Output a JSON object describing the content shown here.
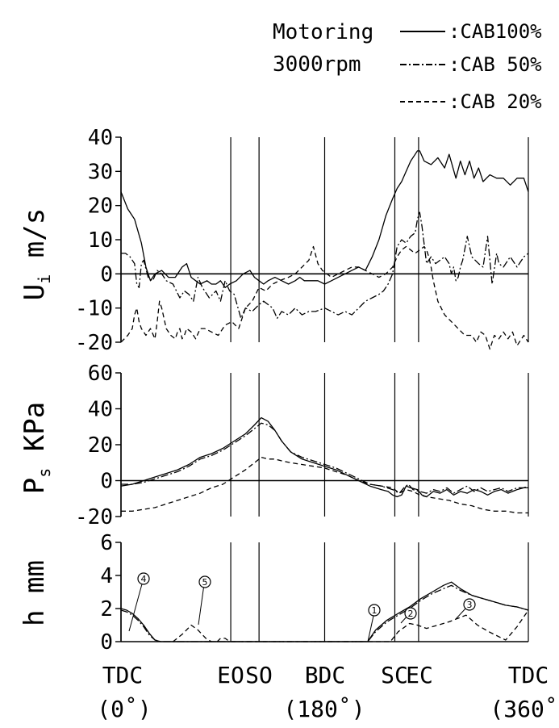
{
  "header": {
    "line1": "Motoring",
    "line2": "3000rpm"
  },
  "legend": [
    {
      "label": ":CAB100%",
      "style": "solid"
    },
    {
      "label": ":CAB 50%",
      "style": "dashdot"
    },
    {
      "label": ":CAB 20%",
      "style": "dashed"
    }
  ],
  "x_ticks": {
    "TDC0": "TDC",
    "TDC0_sub": "(0˚)",
    "EO": "EO",
    "SO": "SO",
    "BDC": "BDC",
    "BDC_sub": "(180˚)",
    "SC": "SC",
    "EC": "EC",
    "TDC360": "TDC",
    "TDC360_sub": "(360˚)"
  },
  "panels": [
    {
      "id": "U",
      "ylabel": "U",
      "ylabel_sub": "i",
      "ylabel_rest": " m/s",
      "ylim": [
        -20,
        40
      ],
      "yticks": [
        "40",
        "30",
        "20",
        "10",
        "0",
        "-10",
        "-20"
      ]
    },
    {
      "id": "P",
      "ylabel": "P",
      "ylabel_sub": "s",
      "ylabel_rest": " KPa",
      "ylim": [
        -20,
        60
      ],
      "yticks": [
        "60",
        "40",
        "20",
        "0",
        "-20"
      ]
    },
    {
      "id": "h",
      "ylabel": "h mm",
      "ylim": [
        0,
        6
      ],
      "yticks": [
        "6",
        "4",
        "2",
        "0"
      ]
    }
  ],
  "markers": [
    "1",
    "2",
    "3",
    "4",
    "5"
  ],
  "chart_data": [
    {
      "type": "line",
      "title": "",
      "ylabel": "U i m/s",
      "xlim": [
        0,
        360
      ],
      "ylim": [
        -20,
        40
      ],
      "vlines": [
        0,
        97,
        122,
        180,
        242,
        263,
        360
      ],
      "series": [
        {
          "name": "CAB100%",
          "style": "solid",
          "x": [
            0,
            6,
            12,
            18,
            22,
            26,
            30,
            36,
            42,
            48,
            54,
            58,
            62,
            66,
            70,
            76,
            80,
            84,
            88,
            92,
            96,
            102,
            108,
            114,
            118,
            122,
            126,
            130,
            136,
            142,
            148,
            154,
            158,
            162,
            168,
            174,
            180,
            186,
            192,
            198,
            204,
            210,
            216,
            222,
            228,
            234,
            240,
            244,
            248,
            252,
            256,
            260,
            262,
            264,
            268,
            274,
            280,
            286,
            290,
            296,
            300,
            304,
            308,
            312,
            316,
            320,
            326,
            332,
            338,
            344,
            350,
            356,
            360
          ],
          "y": [
            24,
            19,
            16,
            9,
            2,
            -2,
            0,
            1,
            -1,
            -1,
            2,
            3,
            -1,
            -2,
            -3,
            -2,
            -3,
            -3,
            -2,
            -4,
            -3,
            -2,
            0,
            1,
            -1,
            -2,
            -3,
            -2,
            -1,
            -2,
            -3,
            -2,
            -1,
            -2,
            -2,
            -2,
            -3,
            -2,
            -1,
            0,
            1,
            2,
            1,
            5,
            10,
            17,
            22,
            25,
            27,
            30,
            33,
            35,
            36,
            36,
            33,
            32,
            34,
            31,
            35,
            28,
            33,
            29,
            33,
            28,
            31,
            27,
            29,
            28,
            28,
            26,
            28,
            28,
            24
          ]
        },
        {
          "name": "CAB 50%",
          "style": "dashdot",
          "x": [
            0,
            4,
            8,
            12,
            14,
            16,
            18,
            20,
            24,
            28,
            32,
            36,
            40,
            46,
            52,
            56,
            60,
            64,
            68,
            72,
            78,
            84,
            88,
            92,
            96,
            100,
            106,
            110,
            116,
            122,
            126,
            130,
            134,
            138,
            142,
            148,
            154,
            160,
            166,
            172,
            180,
            186,
            192,
            198,
            204,
            210,
            216,
            222,
            228,
            232,
            236,
            240,
            244,
            248,
            252,
            256,
            260,
            262,
            264,
            266,
            270,
            274,
            278,
            282,
            286,
            290,
            292,
            294,
            296,
            298,
            300,
            302,
            306,
            310,
            316,
            320,
            324,
            328,
            332,
            334,
            338,
            344,
            350,
            356,
            360
          ],
          "y": [
            6,
            6,
            5,
            3,
            -3,
            -4,
            3,
            4,
            -1,
            -2,
            1,
            0,
            -2,
            -3,
            -7,
            -5,
            -6,
            -8,
            -1,
            -4,
            -7,
            -5,
            -8,
            -2,
            -5,
            -6,
            -13,
            -10,
            -11,
            -9,
            -8,
            -9,
            -10,
            -13,
            -11,
            -12,
            -10,
            -12,
            -11,
            -11,
            -10,
            -11,
            -12,
            -11,
            -12,
            -10,
            -8,
            -7,
            -6,
            -5,
            -3,
            0,
            8,
            10,
            9,
            11,
            12,
            16,
            18,
            14,
            3,
            5,
            3,
            4,
            5,
            3,
            0,
            2,
            -2,
            -1,
            2,
            4,
            11,
            5,
            3,
            2,
            11,
            -3,
            6,
            3,
            2,
            5,
            2,
            5,
            6
          ]
        },
        {
          "name": "CAB 20%",
          "style": "dashed",
          "x": [
            0,
            6,
            10,
            12,
            14,
            16,
            18,
            22,
            26,
            30,
            32,
            34,
            36,
            40,
            44,
            48,
            50,
            52,
            54,
            56,
            58,
            62,
            66,
            70,
            74,
            80,
            86,
            92,
            98,
            104,
            110,
            116,
            122,
            128,
            134,
            140,
            148,
            154,
            160,
            166,
            170,
            174,
            178,
            182,
            186,
            192,
            198,
            204,
            210,
            216,
            222,
            228,
            234,
            240,
            244,
            248,
            252,
            256,
            260,
            264,
            268,
            270,
            272,
            274,
            276,
            280,
            286,
            292,
            298,
            304,
            310,
            314,
            318,
            322,
            326,
            330,
            334,
            338,
            342,
            346,
            350,
            356,
            360
          ],
          "y": [
            -20,
            -18,
            -16,
            -12,
            -10,
            -14,
            -16,
            -18,
            -16,
            -19,
            -14,
            -8,
            -10,
            -16,
            -18,
            -19,
            -17,
            -16,
            -19,
            -18,
            -16,
            -17,
            -19,
            -16,
            -16,
            -17,
            -18,
            -15,
            -14,
            -16,
            -10,
            -8,
            -4,
            -5,
            -3,
            -2,
            -1,
            0,
            2,
            4,
            8,
            3,
            1,
            0,
            -1,
            0,
            1,
            2,
            2,
            1,
            0,
            -1,
            0,
            2,
            5,
            7,
            8,
            7,
            6,
            7,
            8,
            7,
            5,
            2,
            -2,
            -8,
            -12,
            -14,
            -16,
            -18,
            -18,
            -20,
            -17,
            -18,
            -22,
            -18,
            -19,
            -17,
            -19,
            -17,
            -21,
            -18,
            -20
          ]
        }
      ]
    },
    {
      "type": "line",
      "title": "",
      "ylabel": "P s KPa",
      "xlim": [
        0,
        360
      ],
      "ylim": [
        -20,
        60
      ],
      "vlines": [
        0,
        97,
        122,
        180,
        242,
        263,
        360
      ],
      "series": [
        {
          "name": "CAB100%",
          "style": "solid",
          "x": [
            0,
            10,
            20,
            30,
            40,
            50,
            60,
            70,
            80,
            90,
            100,
            110,
            118,
            124,
            130,
            136,
            142,
            150,
            160,
            170,
            180,
            190,
            200,
            210,
            220,
            230,
            236,
            240,
            244,
            248,
            252,
            256,
            262,
            266,
            270,
            276,
            282,
            288,
            294,
            300,
            306,
            312,
            318,
            324,
            330,
            336,
            342,
            350,
            356,
            360
          ],
          "y": [
            -3,
            -2,
            0,
            2,
            4,
            6,
            9,
            13,
            15,
            18,
            22,
            26,
            31,
            35,
            33,
            28,
            22,
            16,
            12,
            10,
            8,
            6,
            3,
            0,
            -3,
            -5,
            -6,
            -8,
            -9,
            -8,
            -3,
            -4,
            -5,
            -8,
            -9,
            -6,
            -7,
            -5,
            -8,
            -6,
            -7,
            -5,
            -6,
            -8,
            -6,
            -5,
            -7,
            -5,
            -4,
            -4
          ]
        },
        {
          "name": "CAB 50%",
          "style": "dashdot",
          "x": [
            0,
            10,
            20,
            30,
            40,
            50,
            60,
            70,
            80,
            90,
            100,
            110,
            118,
            124,
            130,
            136,
            142,
            150,
            160,
            170,
            180,
            190,
            200,
            210,
            220,
            230,
            240,
            246,
            250,
            254,
            258,
            264,
            270,
            276,
            282,
            288,
            294,
            300,
            306,
            312,
            318,
            324,
            330,
            336,
            342,
            350,
            356,
            360
          ],
          "y": [
            -2,
            -2,
            -1,
            1,
            3,
            5,
            8,
            12,
            14,
            17,
            21,
            25,
            29,
            32,
            31,
            28,
            22,
            16,
            13,
            11,
            9,
            7,
            4,
            1,
            -2,
            -3,
            -5,
            -7,
            -4,
            -2,
            -5,
            -6,
            -7,
            -5,
            -6,
            -4,
            -7,
            -5,
            -3,
            -6,
            -4,
            -6,
            -5,
            -4,
            -6,
            -4,
            -4,
            -3
          ]
        },
        {
          "name": "CAB 20%",
          "style": "dashed",
          "x": [
            0,
            10,
            20,
            30,
            40,
            50,
            60,
            70,
            80,
            90,
            100,
            110,
            118,
            124,
            130,
            136,
            142,
            150,
            160,
            170,
            180,
            190,
            200,
            210,
            220,
            230,
            240,
            246,
            252,
            258,
            264,
            270,
            280,
            290,
            300,
            310,
            320,
            330,
            340,
            350,
            360
          ],
          "y": [
            -17,
            -17,
            -16,
            -15,
            -13,
            -11,
            -9,
            -7,
            -4,
            -2,
            2,
            6,
            10,
            13,
            12,
            12,
            11,
            10,
            9,
            8,
            7,
            5,
            3,
            0,
            -2,
            -3,
            -4,
            -7,
            -5,
            -6,
            -8,
            -9,
            -10,
            -11,
            -13,
            -14,
            -16,
            -17,
            -17,
            -18,
            -18
          ]
        }
      ]
    },
    {
      "type": "line",
      "title": "",
      "ylabel": "h mm",
      "xlim": [
        0,
        360
      ],
      "ylim": [
        0,
        6
      ],
      "vlines": [
        0,
        97,
        122,
        180,
        242,
        263,
        360
      ],
      "series": [
        {
          "name": "CAB100%",
          "style": "solid",
          "x": [
            0,
            5,
            10,
            15,
            20,
            25,
            30,
            35,
            218,
            225,
            235,
            245,
            255,
            265,
            275,
            285,
            292,
            300,
            310,
            320,
            330,
            340,
            350,
            360
          ],
          "y": [
            2,
            1.9,
            1.7,
            1.4,
            1,
            0.5,
            0.1,
            0,
            0,
            0.7,
            1.3,
            1.7,
            2.1,
            2.6,
            3,
            3.4,
            3.6,
            3.2,
            2.8,
            2.6,
            2.4,
            2.2,
            2.1,
            1.9
          ]
        },
        {
          "name": "CAB 50%",
          "style": "dashdot",
          "x": [
            0,
            5,
            10,
            15,
            20,
            25,
            30,
            35,
            218,
            225,
            235,
            245,
            255,
            265,
            275,
            285,
            292,
            300,
            310,
            320,
            330,
            340,
            350,
            360
          ],
          "y": [
            1.9,
            1.8,
            1.6,
            1.3,
            0.9,
            0.4,
            0.1,
            0,
            0,
            0.6,
            1.2,
            1.6,
            2,
            2.5,
            2.9,
            3.2,
            3.4,
            3.1,
            2.8,
            2.6,
            2.4,
            2.2,
            2.1,
            1.9
          ]
        },
        {
          "name": "CAB 20%",
          "style": "dashed",
          "x": [
            46,
            55,
            62,
            68,
            75,
            80,
            85,
            88,
            92,
            96,
            238,
            245,
            255,
            262,
            270,
            280,
            290,
            305,
            315,
            325,
            340,
            350,
            360
          ],
          "y": [
            0,
            0.5,
            1,
            0.7,
            0.2,
            0,
            0,
            0.2,
            0.2,
            0,
            0,
            0.6,
            1.1,
            1,
            0.8,
            1,
            1.2,
            1.6,
            1,
            0.6,
            0.1,
            0.9,
            1.9
          ]
        }
      ]
    }
  ]
}
